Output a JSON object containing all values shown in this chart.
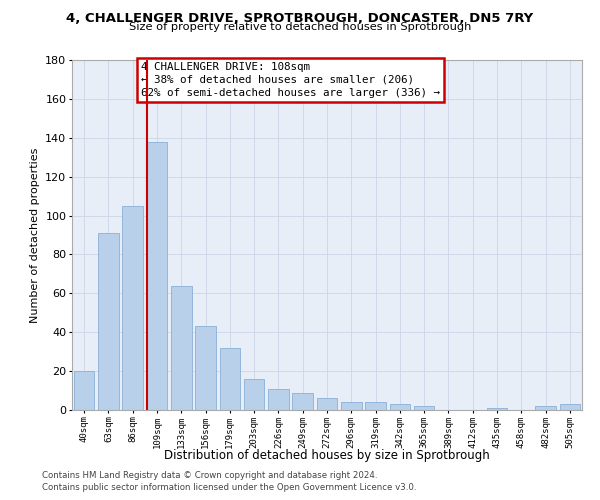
{
  "title1": "4, CHALLENGER DRIVE, SPROTBROUGH, DONCASTER, DN5 7RY",
  "title2": "Size of property relative to detached houses in Sprotbrough",
  "xlabel": "Distribution of detached houses by size in Sprotbrough",
  "ylabel": "Number of detached properties",
  "categories": [
    "40sqm",
    "63sqm",
    "86sqm",
    "109sqm",
    "133sqm",
    "156sqm",
    "179sqm",
    "203sqm",
    "226sqm",
    "249sqm",
    "272sqm",
    "296sqm",
    "319sqm",
    "342sqm",
    "365sqm",
    "389sqm",
    "412sqm",
    "435sqm",
    "458sqm",
    "482sqm",
    "505sqm"
  ],
  "values": [
    20,
    91,
    105,
    138,
    64,
    43,
    32,
    16,
    11,
    9,
    6,
    4,
    4,
    3,
    2,
    0,
    0,
    1,
    0,
    2,
    3
  ],
  "bar_color": "#b8d0ea",
  "bar_edge_color": "#8ab0d8",
  "vline_index": 3,
  "vline_color": "#cc0000",
  "annotation_line1": "4 CHALLENGER DRIVE: 108sqm",
  "annotation_line2": "← 38% of detached houses are smaller (206)",
  "annotation_line3": "62% of semi-detached houses are larger (336) →",
  "annotation_box_edge_color": "#cc0000",
  "ylim": [
    0,
    180
  ],
  "yticks": [
    0,
    20,
    40,
    60,
    80,
    100,
    120,
    140,
    160,
    180
  ],
  "footnote1": "Contains HM Land Registry data © Crown copyright and database right 2024.",
  "footnote2": "Contains public sector information licensed under the Open Government Licence v3.0.",
  "grid_color": "#ccd6e8",
  "bg_color": "#e8eef8"
}
